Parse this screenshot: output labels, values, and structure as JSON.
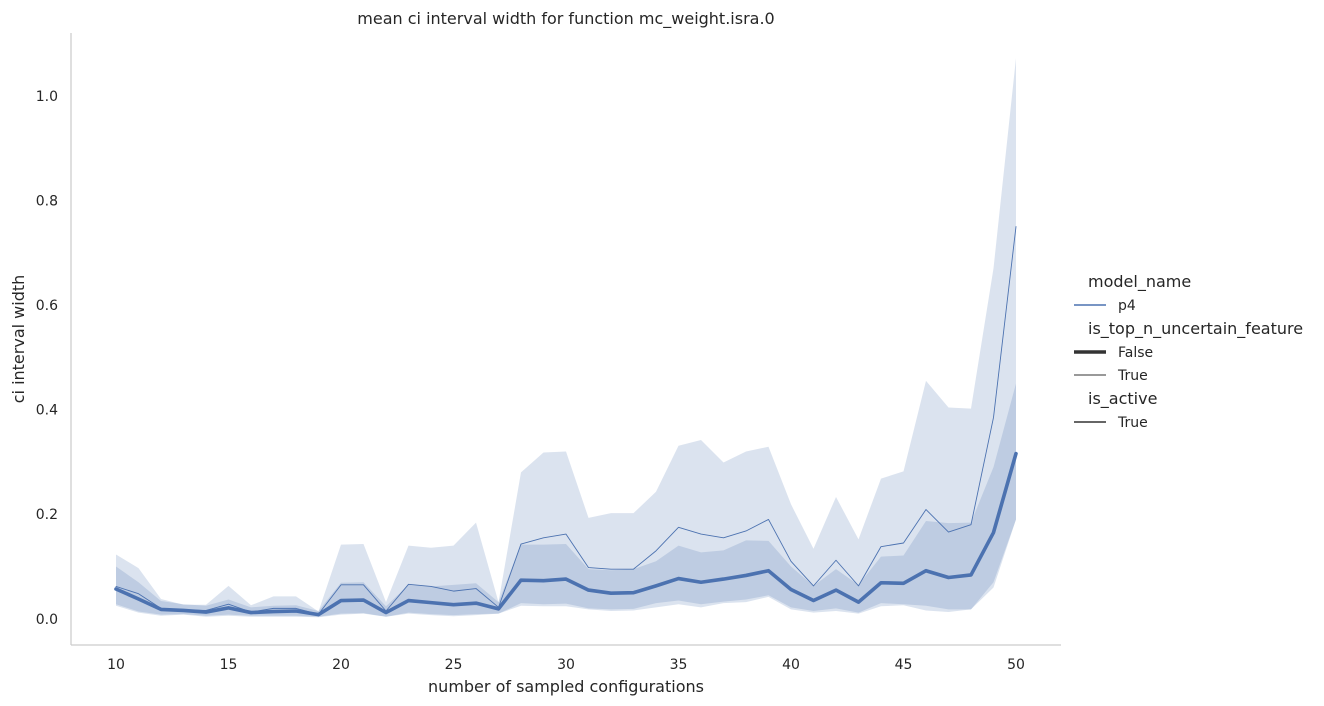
{
  "chart_data": {
    "type": "line",
    "title": "mean ci interval width for function mc_weight.isra.0",
    "xlabel": "number of sampled configurations",
    "ylabel": "ci interval width",
    "xlim": [
      8,
      52
    ],
    "ylim": [
      -0.05,
      1.12
    ],
    "xticks": [
      10,
      15,
      20,
      25,
      30,
      35,
      40,
      45,
      50
    ],
    "yticks": [
      0.0,
      0.2,
      0.4,
      0.6,
      0.8,
      1.0
    ],
    "ytick_labels": [
      "0.0",
      "0.2",
      "0.4",
      "0.6",
      "0.8",
      "1.0"
    ],
    "grid": false,
    "legend_placement": "right",
    "colors": {
      "line": "#4c72b0",
      "band": "#4c72b0",
      "text": "#262626",
      "axis": "#cccccc"
    },
    "x": [
      10,
      11,
      12,
      13,
      14,
      15,
      16,
      17,
      18,
      19,
      20,
      21,
      22,
      23,
      24,
      25,
      26,
      27,
      28,
      29,
      30,
      31,
      32,
      33,
      34,
      35,
      36,
      37,
      38,
      39,
      40,
      41,
      42,
      43,
      44,
      45,
      46,
      47,
      48,
      49,
      50
    ],
    "series": [
      {
        "name": "False",
        "linewidth": "thick",
        "values": [
          0.057,
          0.038,
          0.018,
          0.016,
          0.013,
          0.021,
          0.012,
          0.014,
          0.015,
          0.008,
          0.035,
          0.036,
          0.012,
          0.035,
          0.031,
          0.027,
          0.03,
          0.019,
          0.074,
          0.073,
          0.076,
          0.055,
          0.049,
          0.05,
          0.063,
          0.077,
          0.07,
          0.076,
          0.083,
          0.092,
          0.056,
          0.035,
          0.055,
          0.032,
          0.069,
          0.068,
          0.092,
          0.079,
          0.084,
          0.165,
          0.316
        ],
        "ci_lower": [
          0.028,
          0.014,
          0.008,
          0.009,
          0.006,
          0.008,
          0.006,
          0.006,
          0.006,
          0.004,
          0.01,
          0.011,
          0.004,
          0.012,
          0.009,
          0.007,
          0.009,
          0.01,
          0.03,
          0.028,
          0.029,
          0.02,
          0.018,
          0.019,
          0.03,
          0.035,
          0.028,
          0.033,
          0.037,
          0.045,
          0.022,
          0.015,
          0.02,
          0.012,
          0.03,
          0.028,
          0.025,
          0.018,
          0.018,
          0.06,
          0.19
        ],
        "ci_upper": [
          0.1,
          0.07,
          0.034,
          0.028,
          0.025,
          0.037,
          0.022,
          0.025,
          0.026,
          0.015,
          0.069,
          0.07,
          0.024,
          0.065,
          0.062,
          0.065,
          0.068,
          0.032,
          0.142,
          0.142,
          0.143,
          0.095,
          0.093,
          0.095,
          0.11,
          0.14,
          0.127,
          0.131,
          0.15,
          0.149,
          0.1,
          0.063,
          0.095,
          0.065,
          0.119,
          0.121,
          0.187,
          0.183,
          0.184,
          0.29,
          0.45
        ]
      },
      {
        "name": "True",
        "linewidth": "thin",
        "values": [
          0.062,
          0.048,
          0.02,
          0.017,
          0.016,
          0.028,
          0.013,
          0.02,
          0.02,
          0.009,
          0.065,
          0.065,
          0.015,
          0.066,
          0.062,
          0.053,
          0.058,
          0.022,
          0.143,
          0.155,
          0.162,
          0.098,
          0.095,
          0.095,
          0.13,
          0.175,
          0.162,
          0.155,
          0.168,
          0.19,
          0.11,
          0.063,
          0.112,
          0.063,
          0.138,
          0.145,
          0.209,
          0.166,
          0.18,
          0.385,
          0.75
        ],
        "ci_lower": [
          0.025,
          0.012,
          0.006,
          0.008,
          0.004,
          0.006,
          0.004,
          0.004,
          0.004,
          0.003,
          0.008,
          0.01,
          0.004,
          0.01,
          0.007,
          0.005,
          0.007,
          0.01,
          0.025,
          0.024,
          0.024,
          0.018,
          0.015,
          0.016,
          0.022,
          0.028,
          0.022,
          0.03,
          0.032,
          0.042,
          0.018,
          0.012,
          0.015,
          0.01,
          0.024,
          0.026,
          0.016,
          0.013,
          0.018,
          0.07,
          0.19
        ],
        "ci_upper": [
          0.123,
          0.097,
          0.038,
          0.027,
          0.027,
          0.063,
          0.026,
          0.043,
          0.043,
          0.014,
          0.142,
          0.143,
          0.032,
          0.14,
          0.136,
          0.14,
          0.184,
          0.032,
          0.28,
          0.318,
          0.32,
          0.193,
          0.202,
          0.202,
          0.243,
          0.331,
          0.342,
          0.299,
          0.32,
          0.329,
          0.219,
          0.134,
          0.233,
          0.152,
          0.268,
          0.282,
          0.455,
          0.404,
          0.402,
          0.67,
          1.072
        ]
      }
    ],
    "legend": [
      {
        "kind": "title",
        "text": "model_name"
      },
      {
        "kind": "entry",
        "text": "p4",
        "style": "color"
      },
      {
        "kind": "title",
        "text": "is_top_n_uncertain_feature"
      },
      {
        "kind": "entry",
        "text": "False",
        "style": "thick"
      },
      {
        "kind": "entry",
        "text": "True",
        "style": "thin"
      },
      {
        "kind": "title",
        "text": "is_active"
      },
      {
        "kind": "entry",
        "text": "True",
        "style": "dash"
      }
    ]
  }
}
